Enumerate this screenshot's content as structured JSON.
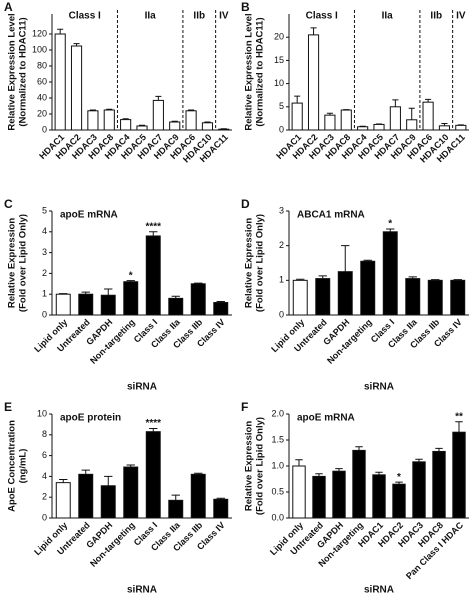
{
  "chart_data": [
    {
      "type": "bar",
      "label": "A",
      "ylabel": [
        "Relative Expression Level",
        "(Normalized to HDAC11)"
      ],
      "categories": [
        "HDAC1",
        "HDAC2",
        "HDAC3",
        "HDAC8",
        "HDAC4",
        "HDAC5",
        "HDAC7",
        "HDAC9",
        "HDAC6",
        "HDAC10",
        "HDAC11"
      ],
      "groups": [
        "Class I",
        "Class I",
        "Class I",
        "Class I",
        "IIa",
        "IIa",
        "IIa",
        "IIa",
        "IIb",
        "IIb",
        "IV"
      ],
      "values": [
        120,
        105,
        24,
        25,
        13,
        5,
        37,
        10,
        24,
        9,
        1
      ],
      "errors": [
        6,
        3,
        1,
        1,
        1,
        1,
        5,
        1,
        1,
        1,
        0.5
      ],
      "colors": [
        "#ffffff",
        "#ffffff",
        "#ffffff",
        "#ffffff",
        "#ffffff",
        "#ffffff",
        "#ffffff",
        "#ffffff",
        "#ffffff",
        "#ffffff",
        "#ffffff"
      ],
      "ylim": [
        0,
        145
      ],
      "yticks": [
        0,
        20,
        40,
        60,
        80,
        100,
        120
      ]
    },
    {
      "type": "bar",
      "label": "B",
      "ylabel": [
        "Relative Expression Level",
        "(Normalized to HDAC11)"
      ],
      "categories": [
        "HDAC1",
        "HDAC2",
        "HDAC3",
        "HDAC8",
        "HDAC4",
        "HDAC5",
        "HDAC7",
        "HDAC9",
        "HDAC6",
        "HDAC10",
        "HDAC11"
      ],
      "groups": [
        "Class I",
        "Class I",
        "Class I",
        "Class I",
        "IIa",
        "IIa",
        "IIa",
        "IIa",
        "IIb",
        "IIb",
        "IV"
      ],
      "values": [
        5.8,
        20.5,
        3.2,
        4.3,
        0.7,
        1.2,
        5,
        2.2,
        6,
        0.9,
        1
      ],
      "errors": [
        1.5,
        1.5,
        0.4,
        0.1,
        0.1,
        0.1,
        1.5,
        2.5,
        0.6,
        0.5,
        0.1
      ],
      "colors": [
        "#ffffff",
        "#ffffff",
        "#ffffff",
        "#ffffff",
        "#ffffff",
        "#ffffff",
        "#ffffff",
        "#ffffff",
        "#ffffff",
        "#ffffff",
        "#ffffff"
      ],
      "ylim": [
        0,
        25
      ],
      "yticks": [
        0,
        5,
        10,
        15,
        20
      ]
    },
    {
      "type": "bar",
      "label": "C",
      "title": "apoE mRNA",
      "xlabel": "siRNA",
      "ylabel": [
        "Relative Expression",
        "(Fold over Lipid Only)"
      ],
      "categories": [
        "Lipid only",
        "Untreated",
        "GAPDH",
        "Non-targeting",
        "Class I",
        "Class IIa",
        "Class IIb",
        "Class IV"
      ],
      "values": [
        1.0,
        1.0,
        0.95,
        1.6,
        3.8,
        0.8,
        1.5,
        0.6
      ],
      "errors": [
        0.03,
        0.1,
        0.3,
        0.05,
        0.2,
        0.1,
        0.03,
        0.05
      ],
      "significance": [
        null,
        null,
        null,
        "*",
        "****",
        null,
        null,
        null
      ],
      "colors": [
        "#ffffff",
        "#000000",
        "#000000",
        "#000000",
        "#000000",
        "#000000",
        "#000000",
        "#000000"
      ],
      "ylim": [
        0,
        5
      ],
      "yticks": [
        0,
        1,
        2,
        3,
        4,
        5
      ]
    },
    {
      "type": "bar",
      "label": "D",
      "title": "ABCA1 mRNA",
      "xlabel": "siRNA",
      "ylabel": [
        "Relative Expression",
        "(Fold over Lipid Only)"
      ],
      "categories": [
        "Lipid only",
        "Untreated",
        "GAPDH",
        "Non-targeting",
        "Class I",
        "Class IIa",
        "Class IIb",
        "Class IV"
      ],
      "values": [
        1.0,
        1.05,
        1.25,
        1.55,
        2.4,
        1.05,
        1.0,
        1.0
      ],
      "errors": [
        0.03,
        0.08,
        0.75,
        0.03,
        0.08,
        0.05,
        0.02,
        0.02
      ],
      "significance": [
        null,
        null,
        null,
        null,
        "*",
        null,
        null,
        null
      ],
      "colors": [
        "#ffffff",
        "#000000",
        "#000000",
        "#000000",
        "#000000",
        "#000000",
        "#000000",
        "#000000"
      ],
      "ylim": [
        0,
        3
      ],
      "yticks": [
        0,
        1,
        2,
        3
      ]
    },
    {
      "type": "bar",
      "label": "E",
      "title": "apoE protein",
      "xlabel": "siRNA",
      "ylabel": [
        "ApoE Concentration",
        "(ng/mL)"
      ],
      "categories": [
        "Lipid only",
        "Untreated",
        "GAPDH",
        "Non-targeting",
        "Class I",
        "Class IIa",
        "Class IIb",
        "Class IV"
      ],
      "values": [
        3.4,
        4.2,
        3.1,
        4.9,
        8.3,
        1.7,
        4.2,
        1.8
      ],
      "errors": [
        0.3,
        0.4,
        0.9,
        0.2,
        0.3,
        0.5,
        0.1,
        0.1
      ],
      "significance": [
        null,
        null,
        null,
        null,
        "****",
        null,
        null,
        null
      ],
      "colors": [
        "#ffffff",
        "#000000",
        "#000000",
        "#000000",
        "#000000",
        "#000000",
        "#000000",
        "#000000"
      ],
      "ylim": [
        0,
        10
      ],
      "yticks": [
        0,
        2,
        4,
        6,
        8,
        10
      ]
    },
    {
      "type": "bar",
      "label": "F",
      "title": "apoE mRNA",
      "xlabel": "siRNA",
      "ylabel": [
        "Relative Expression",
        "(Fold over Lipid Only)"
      ],
      "categories": [
        "Lipid only",
        "Untreated",
        "GAPDH",
        "Non-targeting",
        "HDAC1",
        "HDAC2",
        "HDAC3",
        "HDAC8",
        "Pan Class I HDAC"
      ],
      "values": [
        1.0,
        0.8,
        0.9,
        1.3,
        0.83,
        0.65,
        1.08,
        1.28,
        1.65
      ],
      "errors": [
        0.12,
        0.05,
        0.05,
        0.07,
        0.05,
        0.04,
        0.05,
        0.06,
        0.2
      ],
      "significance": [
        null,
        null,
        null,
        null,
        null,
        "*",
        null,
        null,
        "**"
      ],
      "colors": [
        "#ffffff",
        "#000000",
        "#000000",
        "#000000",
        "#000000",
        "#000000",
        "#000000",
        "#000000",
        "#000000"
      ],
      "ylim": [
        0,
        2
      ],
      "yticks": [
        {
          "value": 0,
          "label": "0.0"
        },
        {
          "value": 0.5,
          "label": "0.5"
        },
        {
          "value": 1,
          "label": "1.0"
        },
        {
          "value": 1.5,
          "label": "1.5"
        },
        {
          "value": 2,
          "label": "2.0"
        }
      ]
    }
  ]
}
